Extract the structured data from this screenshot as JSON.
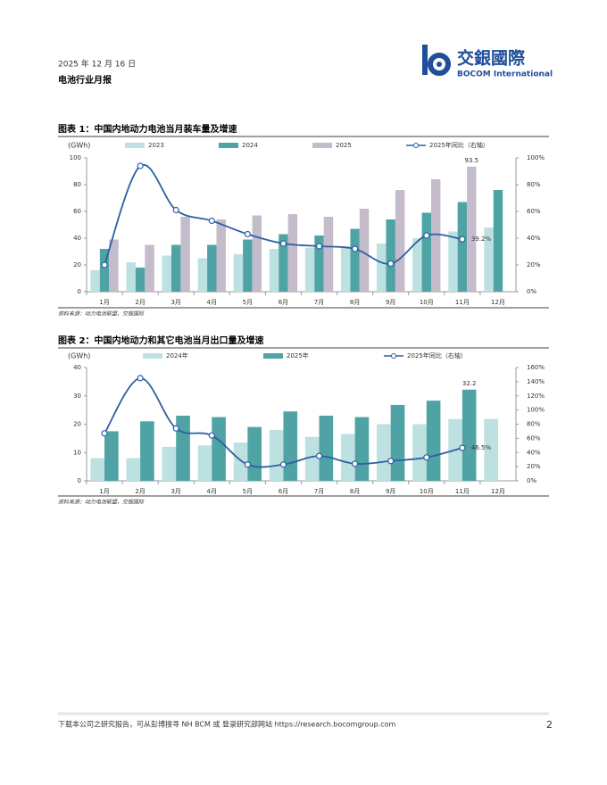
{
  "header": {
    "date": "2025 年 12 月 16 日",
    "report": "电池行业月报",
    "logo": "交銀國際",
    "logo_en": "BOCOM International"
  },
  "chart_data": [
    {
      "type": "bar",
      "title": "图表 1：中国内地动力电池当月装车量及增速",
      "y_label": "(GWh)",
      "source": "资料来源：动力电池联盟，交银国际",
      "categories": [
        "1月",
        "2月",
        "3月",
        "4月",
        "5月",
        "6月",
        "7月",
        "8月",
        "9月",
        "10月",
        "11月",
        "12月"
      ],
      "ylim": [
        0,
        100
      ],
      "yticks": [
        0,
        20,
        40,
        60,
        80,
        100
      ],
      "y2lim": [
        0,
        100
      ],
      "y2ticks": [
        {
          "value": 0,
          "label": "0%"
        },
        {
          "value": 20,
          "label": "20%"
        },
        {
          "value": 40,
          "label": "40%"
        },
        {
          "value": 60,
          "label": "60%"
        },
        {
          "value": 80,
          "label": "80%"
        },
        {
          "value": 100,
          "label": "100%"
        }
      ],
      "series": [
        {
          "name": "2023",
          "type": "bar",
          "color": "#bde0e0",
          "values": [
            16,
            22,
            27,
            25,
            28,
            32,
            33,
            34,
            36,
            40,
            45,
            48
          ]
        },
        {
          "name": "2024",
          "type": "bar",
          "color": "#4fa3a5",
          "values": [
            32,
            18,
            35,
            35,
            39,
            43,
            42,
            47,
            54,
            59,
            67,
            76
          ]
        },
        {
          "name": "2025",
          "type": "bar",
          "color": "#c5bccb",
          "values": [
            39,
            35,
            56,
            54,
            57,
            58,
            56,
            62,
            76,
            84,
            93.5,
            null
          ],
          "value_labels": [
            null,
            null,
            null,
            null,
            null,
            null,
            null,
            null,
            null,
            null,
            "93.5",
            null
          ]
        },
        {
          "name": "2025年同比（右轴）",
          "type": "line",
          "axis": "y2",
          "color": "#2e5fa3",
          "values": [
            20,
            94,
            61,
            53,
            43,
            36,
            34,
            32,
            21,
            42,
            39.2,
            null
          ],
          "value_labels": [
            null,
            null,
            null,
            null,
            null,
            null,
            null,
            null,
            null,
            null,
            "39.2%",
            null
          ]
        }
      ]
    },
    {
      "type": "bar",
      "title": "图表 2：中国内地动力和其它电池当月出口量及增速",
      "y_label": "(GWh)",
      "source": "资料来源：动力电池联盟，交银国际",
      "categories": [
        "1月",
        "2月",
        "3月",
        "4月",
        "5月",
        "6月",
        "7月",
        "8月",
        "9月",
        "10月",
        "11月",
        "12月"
      ],
      "ylim": [
        0,
        40
      ],
      "yticks": [
        0,
        10,
        20,
        30,
        40
      ],
      "y2lim": [
        0,
        160
      ],
      "y2ticks": [
        {
          "value": 0,
          "label": "0%"
        },
        {
          "value": 20,
          "label": "20%"
        },
        {
          "value": 40,
          "label": "40%"
        },
        {
          "value": 60,
          "label": "60%"
        },
        {
          "value": 80,
          "label": "80%"
        },
        {
          "value": 100,
          "label": "100%"
        },
        {
          "value": 120,
          "label": "120%"
        },
        {
          "value": 140,
          "label": "140%"
        },
        {
          "value": 160,
          "label": "160%"
        }
      ],
      "series": [
        {
          "name": "2024年",
          "type": "bar",
          "color": "#bde0e0",
          "values": [
            8,
            8,
            12,
            12.5,
            13.5,
            18,
            15.5,
            16.5,
            20,
            20,
            21.8,
            21.8
          ]
        },
        {
          "name": "2025年",
          "type": "bar",
          "color": "#4fa3a5",
          "values": [
            17.5,
            21,
            23,
            22.5,
            19,
            24.5,
            23,
            22.5,
            26.8,
            28.3,
            32.2,
            null
          ],
          "value_labels": [
            null,
            null,
            null,
            null,
            null,
            null,
            null,
            null,
            null,
            null,
            "32.2",
            null
          ]
        },
        {
          "name": "2025年同比（右轴）",
          "type": "line",
          "axis": "y2",
          "color": "#2e5fa3",
          "values": [
            67,
            145,
            74,
            64,
            23,
            23,
            35,
            24,
            28,
            33,
            46.5,
            null
          ],
          "value_labels": [
            null,
            null,
            null,
            null,
            null,
            null,
            null,
            null,
            null,
            null,
            "46.5%",
            null
          ]
        }
      ]
    }
  ],
  "footer": {
    "text": "下载本公司之研究报告，可从彭博搜寻 NH BCM 或 登录研究部网站 https://research.bocomgroup.com",
    "page": "2"
  }
}
